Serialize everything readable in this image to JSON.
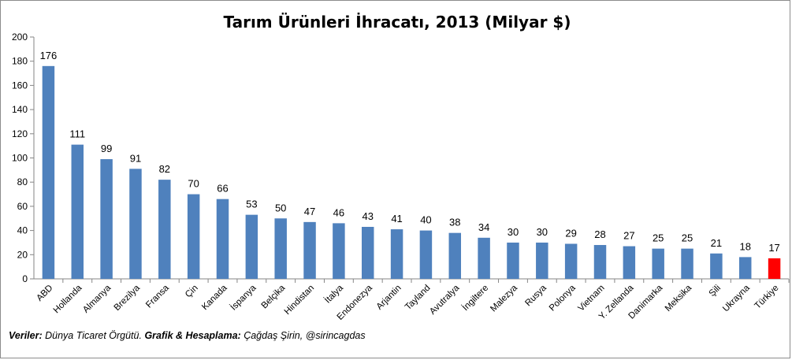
{
  "chart_data": {
    "type": "bar",
    "title": "Tarım Ürünleri İhracatı, 2013 (Milyar $)",
    "categories": [
      "ABD",
      "Hollanda",
      "Almanya",
      "Brezilya",
      "Fransa",
      "Çin",
      "Kanada",
      "İspanya",
      "Belçika",
      "Hindistan",
      "İtalya",
      "Endonezya",
      "Arjantin",
      "Tayland",
      "Avutralya",
      "İngiltere",
      "Malezya",
      "Rusya",
      "Polonya",
      "Vietnam",
      "Y. Zellanda",
      "Danimarka",
      "Meksika",
      "Şili",
      "Ukrayna",
      "Türkiye"
    ],
    "values": [
      176,
      111,
      99,
      91,
      82,
      70,
      66,
      53,
      50,
      47,
      46,
      43,
      41,
      40,
      38,
      34,
      30,
      30,
      29,
      28,
      27,
      25,
      25,
      21,
      18,
      17
    ],
    "ylim": [
      0,
      200
    ],
    "yticks": [
      0,
      20,
      40,
      60,
      80,
      100,
      120,
      140,
      160,
      180,
      200
    ],
    "xlabel": "",
    "ylabel": "",
    "grid": false,
    "bar_color": "#4f81bd",
    "highlight_color": "#ff0000",
    "highlight_category": "Türkiye"
  },
  "footer": {
    "label1": "Veriler:",
    "text1": " Dünya Ticaret Örgütü. ",
    "label2": "Grafik & Hesaplama:",
    "text2": " Çağdaş Şirin, @sirincagdas"
  }
}
